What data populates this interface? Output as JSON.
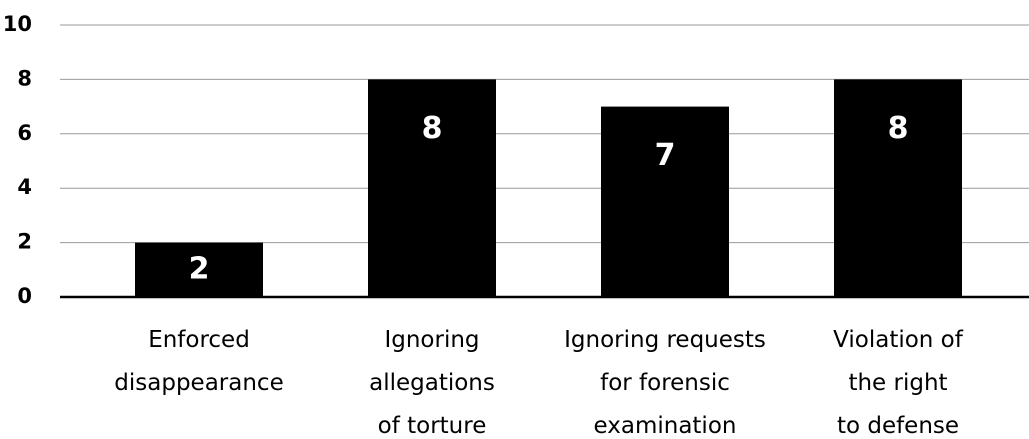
{
  "chart_data": {
    "type": "bar",
    "categories": [
      "Enforced\ndisappearance",
      "Ignoring\nallegations\nof torture",
      "Ignoring requests\nfor forensic\nexamination",
      "Violation of\nthe right\nto defense"
    ],
    "values": [
      2,
      8,
      7,
      8
    ],
    "color": "#000000",
    "ylim": [
      0,
      10
    ],
    "yticks": [
      0,
      2,
      4,
      6,
      8,
      10
    ],
    "grid": true
  }
}
